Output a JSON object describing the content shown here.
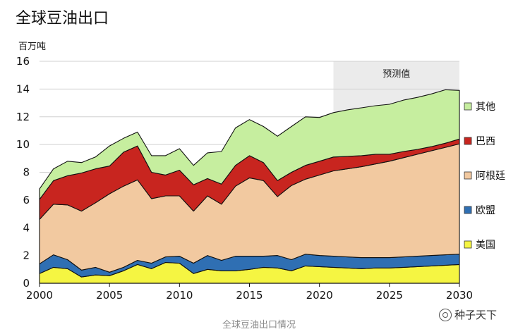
{
  "title": "全球豆油出口",
  "unit": "百万吨",
  "caption": "全球豆油出口情况",
  "watermark": "种子天下",
  "chart_data": {
    "type": "area",
    "stacked": true,
    "xlim": [
      2000,
      2030
    ],
    "ylim": [
      0,
      16
    ],
    "yticks": [
      0,
      2,
      4,
      6,
      8,
      10,
      12,
      14,
      16
    ],
    "xticks": [
      2000,
      2005,
      2010,
      2015,
      2020,
      2025,
      2030
    ],
    "grid": true,
    "legend_position": "right",
    "forecast": {
      "label": "预测值",
      "from": 2021,
      "to": 2030
    },
    "x": [
      2000,
      2001,
      2002,
      2003,
      2004,
      2005,
      2006,
      2007,
      2008,
      2009,
      2010,
      2011,
      2012,
      2013,
      2014,
      2015,
      2016,
      2017,
      2018,
      2019,
      2020,
      2021,
      2022,
      2023,
      2024,
      2025,
      2026,
      2027,
      2028,
      2029,
      2030
    ],
    "series": [
      {
        "name": "美国",
        "color": "#f5f542",
        "values": [
          0.7,
          1.15,
          1.05,
          0.45,
          0.6,
          0.55,
          0.9,
          1.35,
          1.05,
          1.5,
          1.45,
          0.7,
          1.0,
          0.9,
          0.9,
          1.0,
          1.15,
          1.1,
          0.9,
          1.25,
          1.2,
          1.15,
          1.1,
          1.05,
          1.1,
          1.1,
          1.15,
          1.2,
          1.25,
          1.3,
          1.35
        ]
      },
      {
        "name": "欧盟",
        "color": "#2f6fb3",
        "values": [
          0.7,
          0.9,
          0.65,
          0.5,
          0.55,
          0.25,
          0.25,
          0.3,
          0.4,
          0.4,
          0.5,
          0.75,
          1.0,
          0.75,
          1.05,
          0.95,
          0.8,
          0.9,
          0.8,
          0.85,
          0.8,
          0.8,
          0.8,
          0.8,
          0.75,
          0.75,
          0.75,
          0.75,
          0.75,
          0.75,
          0.75
        ]
      },
      {
        "name": "阿根廷",
        "color": "#f2c9a0",
        "values": [
          3.2,
          3.65,
          3.95,
          4.25,
          4.65,
          5.65,
          5.85,
          5.8,
          4.65,
          4.4,
          4.35,
          3.75,
          4.3,
          4.05,
          5.05,
          5.65,
          5.45,
          4.25,
          5.35,
          5.4,
          5.8,
          6.15,
          6.35,
          6.55,
          6.75,
          6.95,
          7.15,
          7.35,
          7.55,
          7.75,
          7.95
        ]
      },
      {
        "name": "巴西",
        "color": "#c8251f",
        "values": [
          1.45,
          1.7,
          2.1,
          2.75,
          2.45,
          2.0,
          2.45,
          2.45,
          1.9,
          1.5,
          1.85,
          1.9,
          1.25,
          1.45,
          1.5,
          1.6,
          1.3,
          1.15,
          0.95,
          1.0,
          1.0,
          1.0,
          0.9,
          0.8,
          0.7,
          0.5,
          0.45,
          0.35,
          0.3,
          0.3,
          0.35
        ]
      },
      {
        "name": "其他",
        "color": "#c6ee9f",
        "values": [
          0.75,
          0.85,
          1.05,
          0.75,
          0.85,
          1.45,
          1.0,
          1.0,
          1.2,
          1.4,
          1.55,
          1.4,
          1.85,
          2.35,
          2.7,
          2.6,
          2.6,
          3.2,
          3.3,
          3.5,
          3.15,
          3.2,
          3.35,
          3.45,
          3.5,
          3.6,
          3.7,
          3.75,
          3.8,
          3.85,
          3.5
        ]
      }
    ]
  }
}
